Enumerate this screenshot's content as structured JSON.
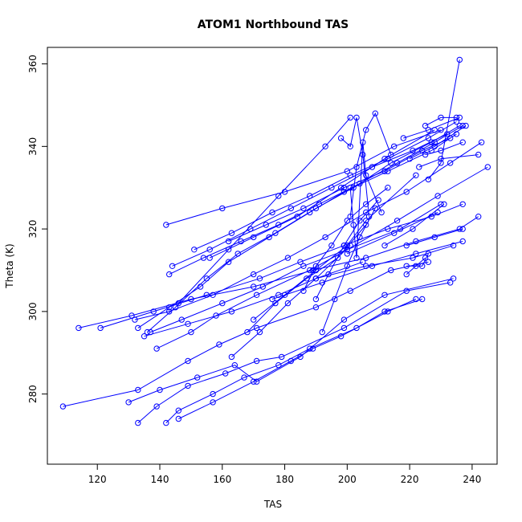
{
  "chart_data": {
    "type": "line",
    "title": "ATOM1 Northbound TAS",
    "xlabel": "TAS",
    "ylabel": "Theta (K)",
    "xlim": [
      104,
      248
    ],
    "ylim": [
      263,
      364
    ],
    "x_ticks": [
      120,
      140,
      160,
      180,
      200,
      220,
      240
    ],
    "y_ticks": [
      280,
      300,
      320,
      340,
      360
    ],
    "grid": false,
    "legend": "none",
    "colors": {
      "series": "#0000ff",
      "axes": "#000000",
      "background": "#ffffff"
    },
    "marker": "open-circle",
    "series": [
      {
        "x": [
          109,
          133,
          149,
          159,
          171,
          190,
          201,
          214,
          226
        ],
        "y": [
          277,
          281,
          288,
          292,
          296,
          301,
          305,
          310,
          312
        ]
      },
      {
        "x": [
          133,
          139,
          149,
          161,
          171,
          179,
          199,
          219,
          233
        ],
        "y": [
          273,
          277,
          282,
          285,
          288,
          289,
          296,
          305,
          307
        ]
      },
      {
        "x": [
          142,
          146,
          157,
          167,
          178,
          188,
          203,
          212,
          224
        ],
        "y": [
          273,
          276,
          280,
          284,
          287,
          291,
          296,
          300,
          303
        ]
      },
      {
        "x": [
          146,
          157,
          170,
          182,
          189,
          198,
          213,
          222
        ],
        "y": [
          274,
          278,
          283,
          288,
          291,
          294,
          300,
          303
        ]
      },
      {
        "x": [
          130,
          140,
          152,
          164,
          171,
          185,
          199,
          212,
          234
        ],
        "y": [
          278,
          281,
          284,
          287,
          283,
          289,
          298,
          304,
          308
        ]
      },
      {
        "x": [
          135,
          149,
          163,
          178,
          190,
          205
        ],
        "y": [
          294,
          297,
          300,
          304,
          308,
          312
        ]
      },
      {
        "x": [
          114,
          131,
          150,
          170,
          189,
          206,
          222,
          236,
          242
        ],
        "y": [
          296,
          299,
          303,
          306,
          310,
          313,
          317,
          320,
          323
        ]
      },
      {
        "x": [
          121,
          138,
          155,
          172,
          185,
          199,
          213,
          227,
          237
        ],
        "y": [
          296,
          300,
          304,
          308,
          312,
          316,
          320,
          323,
          326
        ]
      },
      {
        "x": [
          137,
          147,
          160,
          173,
          186,
          200,
          217,
          230
        ],
        "y": [
          295,
          298,
          302,
          306,
          311,
          315,
          320,
          326
        ]
      },
      {
        "x": [
          139,
          150,
          158,
          171,
          188,
          200,
          216,
          229,
          245
        ],
        "y": [
          291,
          295,
          299,
          304,
          310,
          315,
          322,
          328,
          335
        ]
      },
      {
        "x": [
          132,
          143,
          157,
          170,
          181,
          193,
          206,
          219,
          233,
          243
        ],
        "y": [
          298,
          300,
          304,
          309,
          313,
          318,
          324,
          329,
          336,
          341
        ]
      },
      {
        "x": [
          133,
          143,
          153,
          162,
          175,
          188,
          199,
          213,
          227,
          235
        ],
        "y": [
          296,
          301,
          306,
          312,
          318,
          324,
          329,
          334,
          339,
          343
        ]
      },
      {
        "x": [
          136,
          145,
          155,
          165,
          177,
          190,
          202,
          214,
          227,
          236
        ],
        "y": [
          295,
          301,
          308,
          314,
          319,
          325,
          330,
          336,
          341,
          345
        ]
      },
      {
        "x": [
          143,
          154,
          166,
          178,
          191,
          204,
          216,
          228,
          237
        ],
        "y": [
          309,
          313,
          317,
          321,
          326,
          331,
          336,
          341,
          345
        ]
      },
      {
        "x": [
          144,
          156,
          169,
          182,
          195,
          208,
          221,
          232
        ],
        "y": [
          311,
          315,
          320,
          325,
          330,
          335,
          339,
          343
        ]
      },
      {
        "x": [
          151,
          163,
          176,
          188,
          201,
          213,
          226,
          235
        ],
        "y": [
          315,
          319,
          324,
          328,
          333,
          337,
          342,
          346
        ]
      },
      {
        "x": [
          162,
          174,
          186,
          199,
          212,
          224,
          233
        ],
        "y": [
          317,
          321,
          325,
          330,
          334,
          339,
          342
        ]
      },
      {
        "x": [
          142,
          160,
          180,
          200,
          215,
          230
        ],
        "y": [
          321,
          325,
          329,
          334,
          340,
          344
        ]
      },
      {
        "x": [
          146,
          162,
          178,
          193,
          201
        ],
        "y": [
          302,
          315,
          328,
          340,
          347
        ]
      },
      {
        "x": [
          156,
          170,
          184,
          198,
          212,
          228
        ],
        "y": [
          313,
          318,
          323,
          330,
          337,
          344
        ]
      },
      {
        "x": [
          198,
          201,
          203,
          205,
          207
        ],
        "y": [
          342,
          340,
          347,
          338,
          323
        ]
      },
      {
        "x": [
          201,
          203,
          206,
          209,
          214
        ],
        "y": [
          323,
          335,
          344,
          348,
          338
        ]
      },
      {
        "x": [
          201,
          202,
          203,
          205,
          206,
          211
        ],
        "y": [
          330,
          321,
          313,
          341,
          333,
          324
        ]
      },
      {
        "x": [
          170,
          180,
          190,
          200,
          206,
          222
        ],
        "y": [
          298,
          304,
          310,
          316,
          322,
          333
        ]
      },
      {
        "x": [
          163,
          172,
          181,
          190,
          201
        ],
        "y": [
          289,
          295,
          302,
          308,
          316
        ]
      },
      {
        "x": [
          168,
          177,
          187,
          197,
          206
        ],
        "y": [
          295,
          302,
          308,
          313,
          321
        ]
      },
      {
        "x": [
          186,
          190,
          195,
          200,
          206,
          213
        ],
        "y": [
          305,
          311,
          316,
          322,
          326,
          330
        ]
      },
      {
        "x": [
          190,
          194,
          199,
          204,
          210
        ],
        "y": [
          303,
          309,
          316,
          322,
          327
        ]
      },
      {
        "x": [
          192,
          196,
          200,
          204,
          209
        ],
        "y": [
          295,
          303,
          311,
          318,
          325
        ]
      },
      {
        "x": [
          219,
          224,
          226
        ],
        "y": [
          311,
          311,
          314
        ]
      },
      {
        "x": [
          219,
          222,
          225
        ],
        "y": [
          309,
          311,
          313
        ]
      },
      {
        "x": [
          219,
          228,
          237
        ],
        "y": [
          316,
          318,
          320
        ]
      },
      {
        "x": [
          190,
          206,
          221,
          234
        ],
        "y": [
          308,
          311,
          313,
          316
        ]
      },
      {
        "x": [
          176,
          192,
          208,
          222,
          237
        ],
        "y": [
          303,
          307,
          311,
          314,
          317
        ]
      },
      {
        "x": [
          200,
          215,
          229
        ],
        "y": [
          314,
          319,
          324
        ]
      },
      {
        "x": [
          212,
          221,
          231
        ],
        "y": [
          316,
          320,
          326
        ]
      },
      {
        "x": [
          226,
          230,
          236
        ],
        "y": [
          332,
          336,
          361
        ]
      },
      {
        "x": [
          225,
          230,
          235
        ],
        "y": [
          345,
          347,
          347
        ]
      },
      {
        "x": [
          218,
          226,
          236
        ],
        "y": [
          342,
          344,
          347
        ]
      },
      {
        "x": [
          220,
          228,
          238
        ],
        "y": [
          337,
          340,
          345
        ]
      },
      {
        "x": [
          223,
          230,
          242
        ],
        "y": [
          335,
          337,
          338
        ]
      },
      {
        "x": [
          225,
          230,
          237
        ],
        "y": [
          338,
          339,
          341
        ]
      }
    ]
  }
}
